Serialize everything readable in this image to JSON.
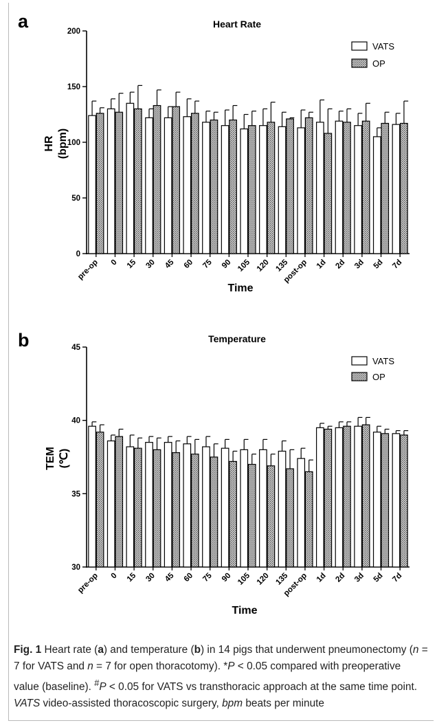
{
  "chart_data": [
    {
      "panel_letter": "a",
      "type": "bar",
      "title": "Heart Rate",
      "xlabel": "Time",
      "ylabel": "HR",
      "yunit": "(bpm)",
      "ylim": [
        0,
        200
      ],
      "yticks": [
        0,
        50,
        100,
        150,
        200
      ],
      "grid": false,
      "legend_position": "top-right",
      "categories": [
        "pre-op",
        "0",
        "15",
        "30",
        "45",
        "60",
        "75",
        "90",
        "105",
        "120",
        "135",
        "post-op",
        "1d",
        "2d",
        "3d",
        "5d",
        "7d"
      ],
      "series": [
        {
          "name": "VATS",
          "fill": "#ffffff",
          "values": [
            124,
            130,
            135,
            122,
            122,
            123,
            118,
            115,
            112,
            115,
            114,
            113,
            118,
            119,
            115,
            105,
            116
          ],
          "errors": [
            13,
            9,
            10,
            8,
            10,
            16,
            10,
            14,
            13,
            15,
            13,
            16,
            20,
            9,
            11,
            8,
            10
          ]
        },
        {
          "name": "OP",
          "fill": "#9e9e9e",
          "values": [
            126,
            127,
            130,
            133,
            132,
            126,
            120,
            120,
            115,
            118,
            121,
            122,
            108,
            118,
            119,
            117,
            117
          ],
          "errors": [
            5,
            17,
            21,
            14,
            13,
            11,
            7,
            13,
            13,
            18,
            1,
            5,
            22,
            12,
            16,
            10,
            20
          ]
        }
      ]
    },
    {
      "panel_letter": "b",
      "type": "bar",
      "title": "Temperature",
      "xlabel": "Time",
      "ylabel": "TEM",
      "yunit": "(℃)",
      "ylim": [
        30,
        45
      ],
      "yticks": [
        30,
        35,
        40,
        45
      ],
      "grid": false,
      "legend_position": "top-right",
      "categories": [
        "pre-op",
        "0",
        "15",
        "30",
        "45",
        "60",
        "75",
        "90",
        "105",
        "120",
        "135",
        "post-op",
        "1d",
        "2d",
        "3d",
        "5d",
        "7d"
      ],
      "series": [
        {
          "name": "VATS",
          "fill": "#ffffff",
          "values": [
            39.6,
            38.6,
            38.2,
            38.5,
            38.5,
            38.4,
            38.2,
            38.1,
            38.0,
            38.0,
            37.9,
            37.4,
            39.5,
            39.5,
            39.6,
            39.2,
            39.1
          ],
          "errors": [
            0.3,
            0.4,
            0.8,
            0.4,
            0.4,
            0.5,
            0.7,
            0.6,
            0.7,
            0.7,
            0.7,
            0.7,
            0.3,
            0.4,
            0.6,
            0.4,
            0.2
          ]
        },
        {
          "name": "OP",
          "fill": "#9e9e9e",
          "values": [
            39.2,
            38.9,
            38.1,
            38.0,
            37.8,
            37.7,
            37.5,
            37.2,
            37.0,
            36.9,
            36.7,
            36.5,
            39.4,
            39.6,
            39.7,
            39.1,
            39.0
          ],
          "errors": [
            0.5,
            0.5,
            0.7,
            0.8,
            0.8,
            1.0,
            0.9,
            0.7,
            0.7,
            0.8,
            1.3,
            0.8,
            0.2,
            0.3,
            0.5,
            0.3,
            0.3
          ]
        }
      ]
    }
  ],
  "caption": {
    "label": "Fig. 1",
    "parts": [
      {
        "t": "  Heart rate (",
        "s": "n"
      },
      {
        "t": "a",
        "s": "b"
      },
      {
        "t": ") and temperature (",
        "s": "n"
      },
      {
        "t": "b",
        "s": "b"
      },
      {
        "t": ") in 14 pigs that underwent pneumonectomy (",
        "s": "n"
      },
      {
        "t": "n",
        "s": "i"
      },
      {
        "t": " = 7 for VATS and ",
        "s": "n"
      },
      {
        "t": "n",
        "s": "i"
      },
      {
        "t": " = 7 for open thoracotomy). *",
        "s": "n"
      },
      {
        "t": "P",
        "s": "i"
      },
      {
        "t": " < 0.05 compared with preoperative value (baseline). ",
        "s": "n"
      },
      {
        "t": "#",
        "s": "sup"
      },
      {
        "t": "P",
        "s": "i"
      },
      {
        "t": " < 0.05 for VATS vs transthoracic approach at the same time point. ",
        "s": "n"
      },
      {
        "t": "VATS",
        "s": "i"
      },
      {
        "t": " video-assisted thoracoscopic surgery, ",
        "s": "n"
      },
      {
        "t": "bpm",
        "s": "i"
      },
      {
        "t": " beats per minute",
        "s": "n"
      }
    ]
  }
}
